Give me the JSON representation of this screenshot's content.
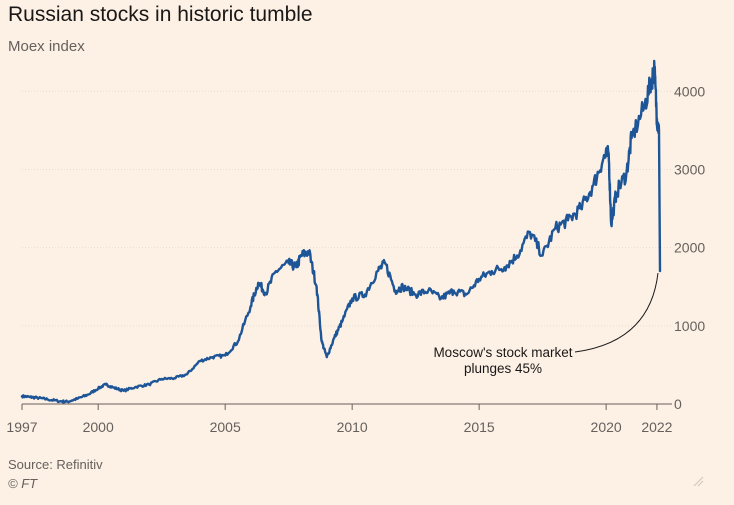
{
  "header": {
    "title": "Russian stocks in historic tumble",
    "subtitle": "Moex index"
  },
  "footer": {
    "source": "Source: Refinitiv",
    "copyright": "© FT"
  },
  "colors": {
    "background": "#fdf1e6",
    "line": "#1d5597",
    "grid": "#e7dcd0",
    "axis": "#66605c"
  },
  "chart_data": {
    "type": "line",
    "title": "Russian stocks in historic tumble",
    "subtitle": "Moex index",
    "xlabel": "",
    "ylabel": "",
    "xlim": [
      1997,
      2022.2
    ],
    "ylim": [
      0,
      4400
    ],
    "yaxis_position": "right",
    "grid": true,
    "x_ticks": [
      "1997",
      "2000",
      "2005",
      "2010",
      "2015",
      "2020",
      "2022"
    ],
    "x_tick_values": [
      1997,
      2000,
      2005,
      2010,
      2015,
      2020,
      2022
    ],
    "y_ticks": [
      "0",
      "1000",
      "2000",
      "3000",
      "4000"
    ],
    "y_tick_values": [
      0,
      1000,
      2000,
      3000,
      4000
    ],
    "series": [
      {
        "name": "Moex index",
        "points": [
          [
            1997.0,
            100
          ],
          [
            1997.3,
            90
          ],
          [
            1997.6,
            80
          ],
          [
            1998.0,
            60
          ],
          [
            1998.5,
            35
          ],
          [
            1998.8,
            30
          ],
          [
            1999.2,
            70
          ],
          [
            1999.6,
            120
          ],
          [
            2000.0,
            200
          ],
          [
            2000.3,
            250
          ],
          [
            2000.6,
            210
          ],
          [
            2001.0,
            170
          ],
          [
            2001.5,
            220
          ],
          [
            2002.0,
            250
          ],
          [
            2002.5,
            320
          ],
          [
            2003.0,
            330
          ],
          [
            2003.5,
            380
          ],
          [
            2004.0,
            550
          ],
          [
            2004.5,
            600
          ],
          [
            2005.0,
            620
          ],
          [
            2005.5,
            800
          ],
          [
            2006.0,
            1250
          ],
          [
            2006.3,
            1550
          ],
          [
            2006.6,
            1420
          ],
          [
            2007.0,
            1700
          ],
          [
            2007.5,
            1800
          ],
          [
            2007.8,
            1750
          ],
          [
            2008.0,
            1900
          ],
          [
            2008.3,
            1950
          ],
          [
            2008.6,
            1500
          ],
          [
            2008.8,
            800
          ],
          [
            2009.0,
            600
          ],
          [
            2009.3,
            850
          ],
          [
            2009.6,
            1050
          ],
          [
            2010.0,
            1350
          ],
          [
            2010.5,
            1400
          ],
          [
            2011.0,
            1700
          ],
          [
            2011.3,
            1800
          ],
          [
            2011.7,
            1450
          ],
          [
            2012.0,
            1500
          ],
          [
            2012.5,
            1400
          ],
          [
            2013.0,
            1450
          ],
          [
            2013.5,
            1350
          ],
          [
            2014.0,
            1450
          ],
          [
            2014.5,
            1400
          ],
          [
            2015.0,
            1600
          ],
          [
            2015.5,
            1700
          ],
          [
            2016.0,
            1750
          ],
          [
            2016.5,
            1900
          ],
          [
            2017.0,
            2200
          ],
          [
            2017.5,
            1900
          ],
          [
            2018.0,
            2250
          ],
          [
            2018.5,
            2350
          ],
          [
            2019.0,
            2500
          ],
          [
            2019.5,
            2800
          ],
          [
            2019.9,
            3150
          ],
          [
            2020.1,
            3200
          ],
          [
            2020.2,
            2300
          ],
          [
            2020.4,
            2700
          ],
          [
            2020.8,
            2950
          ],
          [
            2021.0,
            3400
          ],
          [
            2021.5,
            3800
          ],
          [
            2021.8,
            4150
          ],
          [
            2021.9,
            4300
          ],
          [
            2022.0,
            3650
          ],
          [
            2022.08,
            3500
          ],
          [
            2022.12,
            1700
          ]
        ]
      }
    ],
    "annotations": [
      {
        "text_lines": [
          "Moscow's stock market",
          "plunges 45%"
        ],
        "points_to": [
          2022.12,
          1700
        ]
      }
    ]
  }
}
